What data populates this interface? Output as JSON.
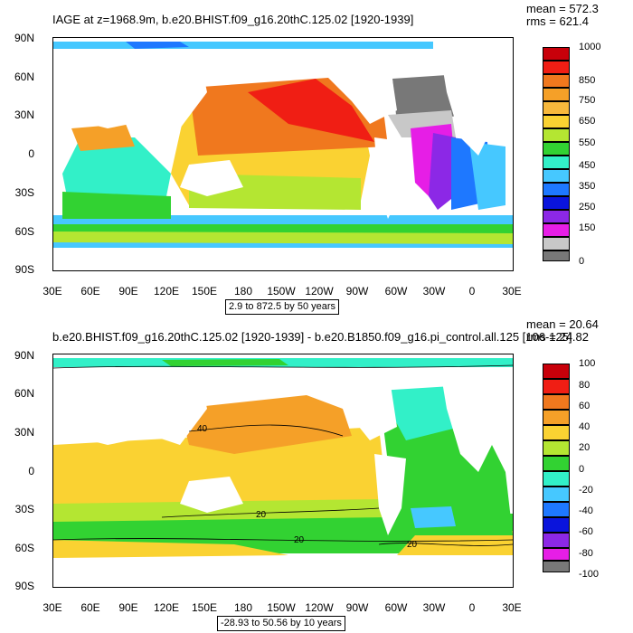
{
  "panels": [
    {
      "title": "IAGE at z=1968.9m, b.e20.BHIST.f09_g16.20thC.125.02 [1920-1939]",
      "stats": {
        "mean": "mean = 572.3",
        "rms": "rms = 621.4"
      },
      "range_text": "2.9 to 872.5 by 50 years",
      "y_ticks": [
        "90N",
        "60N",
        "30N",
        "0",
        "30S",
        "60S",
        "90S"
      ],
      "x_ticks": [
        "30E",
        "60E",
        "90E",
        "120E",
        "150E",
        "180",
        "150W",
        "120W",
        "90W",
        "60W",
        "30W",
        "0",
        "30E"
      ],
      "colorbar": {
        "labels": [
          "1000",
          "",
          "850",
          "750",
          "650",
          "550",
          "450",
          "350",
          "250",
          "150",
          "",
          "0"
        ],
        "colors": [
          "#c8000a",
          "#f01e14",
          "#f0781e",
          "#f5a028",
          "#fad232",
          "#b4e632",
          "#32d232",
          "#32f0c8",
          "#46c8ff",
          "#1e78ff",
          "#0a14dc",
          "#8c28e6",
          "#e61ee6",
          "#c8c8c8",
          "#787878"
        ]
      },
      "contour_labels": []
    },
    {
      "title": "b.e20.BHIST.f09_g16.20thC.125.02 [1920-1939] - b.e20.B1850.f09_g16.pi_control.all.125 [106-125]",
      "stats": {
        "mean": "mean = 20.64",
        "rms": "rms = 24.82"
      },
      "range_text": "-28.93 to 50.56 by 10 years",
      "y_ticks": [
        "90N",
        "60N",
        "30N",
        "0",
        "30S",
        "60S",
        "90S"
      ],
      "x_ticks": [
        "30E",
        "60E",
        "90E",
        "120E",
        "150E",
        "180",
        "150W",
        "120W",
        "90W",
        "60W",
        "30W",
        "0",
        "30E"
      ],
      "colorbar": {
        "labels": [
          "100",
          "80",
          "60",
          "40",
          "20",
          "0",
          "-20",
          "-40",
          "-60",
          "-80",
          "-100"
        ],
        "colors": [
          "#c8000a",
          "#f01e14",
          "#f0781e",
          "#f5a028",
          "#fad232",
          "#b4e632",
          "#32d232",
          "#32f0c8",
          "#46c8ff",
          "#1e78ff",
          "#0a14dc",
          "#8c28e6",
          "#e61ee6",
          "#c8c8c8",
          "#787878"
        ]
      },
      "contour_labels": [
        "40",
        "20",
        "20",
        "20"
      ]
    }
  ]
}
